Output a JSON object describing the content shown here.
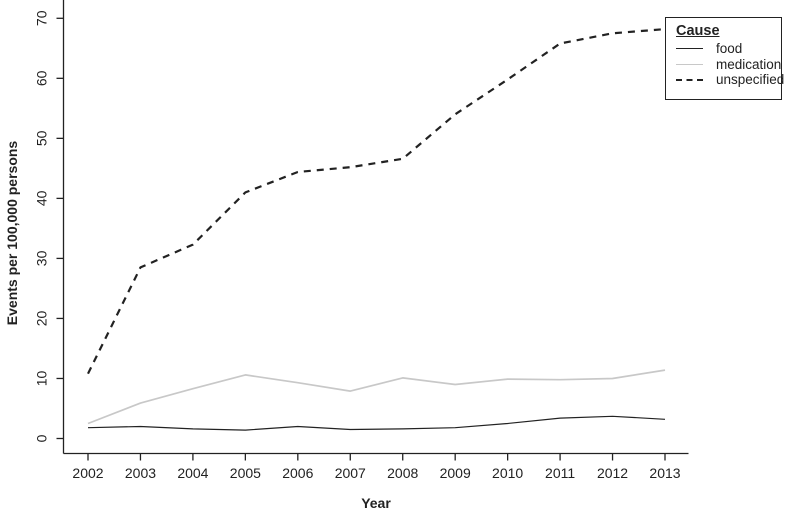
{
  "chart_data": {
    "type": "line",
    "title": "",
    "xlabel": "Year",
    "ylabel": "Events per 100,000 persons",
    "x": [
      2002,
      2003,
      2004,
      2005,
      2006,
      2007,
      2008,
      2009,
      2010,
      2011,
      2012,
      2013
    ],
    "y_ticks": [
      0,
      10,
      20,
      30,
      40,
      50,
      60,
      70
    ],
    "ylim": [
      0,
      70
    ],
    "grid": false,
    "axis_color": "#222222",
    "background": "#ffffff",
    "legend": {
      "title": "Cause",
      "position": "top-right"
    },
    "series": [
      {
        "name": "food",
        "color": "#222222",
        "style": "solid",
        "width": 1.2,
        "values": [
          1.8,
          2.0,
          1.6,
          1.4,
          2.0,
          1.5,
          1.6,
          1.8,
          2.5,
          3.4,
          3.7,
          3.2
        ]
      },
      {
        "name": "medication",
        "color": "#c8c8c8",
        "style": "solid",
        "width": 1.7,
        "values": [
          2.5,
          5.9,
          8.3,
          10.6,
          9.3,
          7.9,
          10.1,
          9.0,
          9.9,
          9.8,
          10.0,
          11.4
        ]
      },
      {
        "name": "unspecified",
        "color": "#222222",
        "style": "dashed",
        "width": 2.2,
        "values": [
          10.8,
          28.5,
          32.3,
          41.0,
          44.4,
          45.2,
          46.6,
          54.0,
          59.8,
          65.8,
          67.5,
          68.2
        ]
      }
    ]
  }
}
